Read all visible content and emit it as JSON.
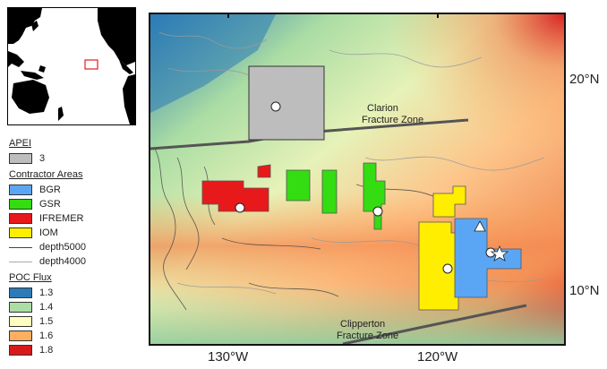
{
  "legend": {
    "apei": {
      "heading": "APEI",
      "items": [
        {
          "label": "3",
          "color": "#bdbdbd"
        }
      ]
    },
    "contractors": {
      "heading": "Contractor Areas",
      "items": [
        {
          "label": "BGR",
          "color": "#5aa6f5"
        },
        {
          "label": "GSR",
          "color": "#33dd11"
        },
        {
          "label": "IFREMER",
          "color": "#e8191a"
        },
        {
          "label": "IOM",
          "color": "#ffee00"
        }
      ]
    },
    "contours": [
      {
        "label": "depth5000",
        "color": "#444444"
      },
      {
        "label": "depth4000",
        "color": "#aaaaaa"
      }
    ],
    "poc": {
      "heading": "POC Flux",
      "items": [
        {
          "label": "1.3",
          "color": "#2c7bb6"
        },
        {
          "label": "1.4",
          "color": "#abdda4"
        },
        {
          "label": "1.5",
          "color": "#ffffbf"
        },
        {
          "label": "1.6",
          "color": "#fdae61"
        },
        {
          "label": "1.8",
          "color": "#d7191c"
        }
      ]
    }
  },
  "map": {
    "labels": {
      "clarion": [
        "Clarion",
        "Fracture Zone"
      ],
      "clipperton": [
        "Clipperton",
        "Fracture Zone"
      ]
    },
    "axes": {
      "x_ticks": [
        "130°W",
        "120°W"
      ],
      "y_ticks": [
        "20°N",
        "10°N"
      ]
    }
  }
}
